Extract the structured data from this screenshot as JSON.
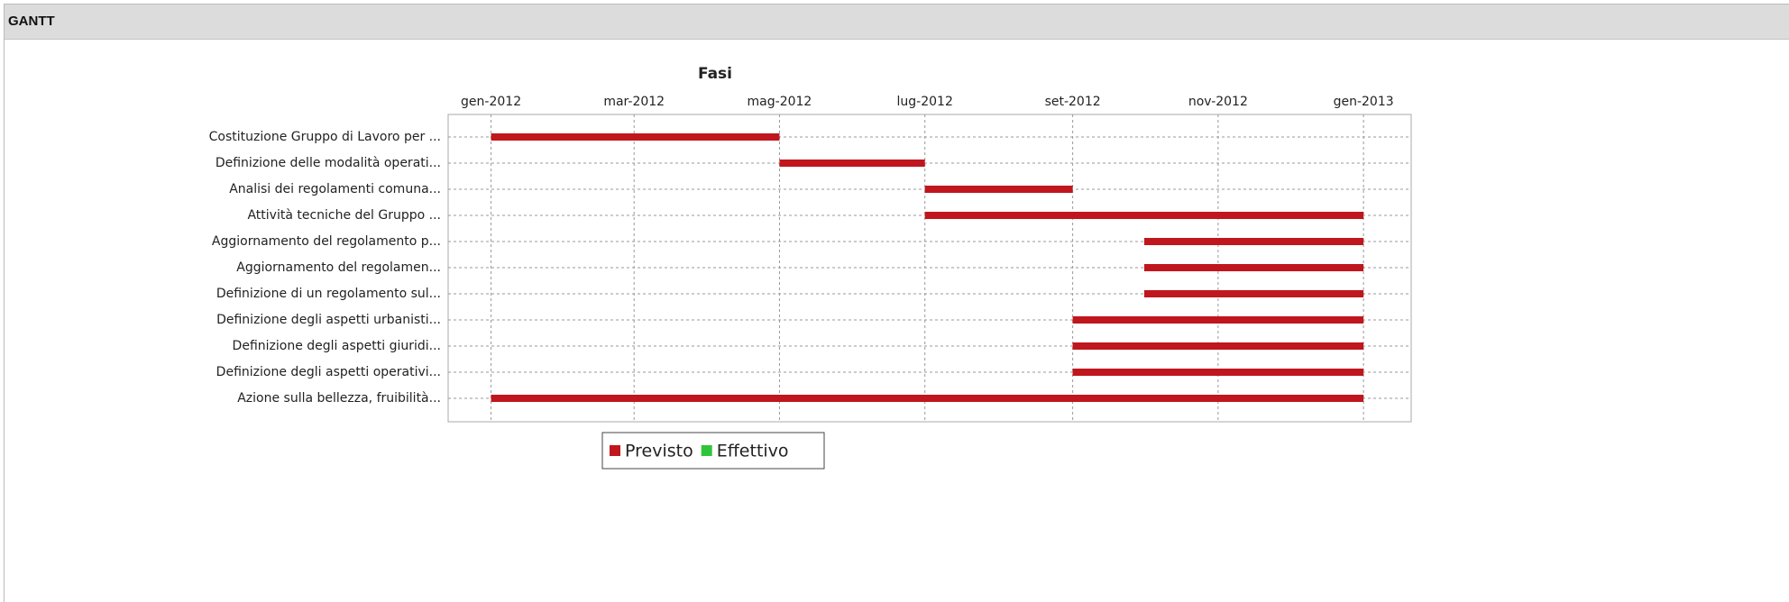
{
  "header": {
    "title": "GANTT"
  },
  "chart_data": {
    "type": "gantt",
    "title": "Fasi",
    "categories": [
      "Costituzione Gruppo di Lavoro per ...",
      "Definizione delle modalità operati...",
      "Analisi dei regolamenti comuna...",
      "Attività tecniche del Gruppo ...",
      "Aggiornamento del regolamento p...",
      "Aggiornamento del regolamen...",
      "Definizione di un regolamento sul...",
      "Definizione degli aspetti urbanisti...",
      "Definizione degli aspetti giuridi...",
      "Definizione degli aspetti operativi...",
      "Azione sulla bellezza, fruibilità..."
    ],
    "series": [
      {
        "name": "Previsto",
        "color": "#c0161d",
        "start": [
          "2012-01-01",
          "2012-05-01",
          "2012-07-01",
          "2012-07-01",
          "2012-10-01",
          "2012-10-01",
          "2012-10-01",
          "2012-09-01",
          "2012-09-01",
          "2012-09-01",
          "2012-01-01"
        ],
        "end": [
          "2012-05-01",
          "2012-07-01",
          "2012-09-01",
          "2013-01-01",
          "2013-01-01",
          "2013-01-01",
          "2013-01-01",
          "2013-01-01",
          "2013-01-01",
          "2013-01-01",
          "2013-01-01"
        ]
      },
      {
        "name": "Effettivo",
        "color": "#2fc43c",
        "start": [
          null,
          null,
          null,
          null,
          null,
          null,
          null,
          null,
          null,
          null,
          null
        ],
        "end": [
          null,
          null,
          null,
          null,
          null,
          null,
          null,
          null,
          null,
          null,
          null
        ]
      }
    ],
    "xlim": [
      "2011-12-14",
      "2013-01-21"
    ],
    "xticks": [
      {
        "value": "2012-01-01",
        "label": "gen-2012"
      },
      {
        "value": "2012-03-01",
        "label": "mar-2012"
      },
      {
        "value": "2012-05-01",
        "label": "mag-2012"
      },
      {
        "value": "2012-07-01",
        "label": "lug-2012"
      },
      {
        "value": "2012-09-01",
        "label": "set-2012"
      },
      {
        "value": "2012-11-01",
        "label": "nov-2012"
      },
      {
        "value": "2013-01-01",
        "label": "gen-2013"
      }
    ],
    "grid": true,
    "legend": "bottom"
  }
}
